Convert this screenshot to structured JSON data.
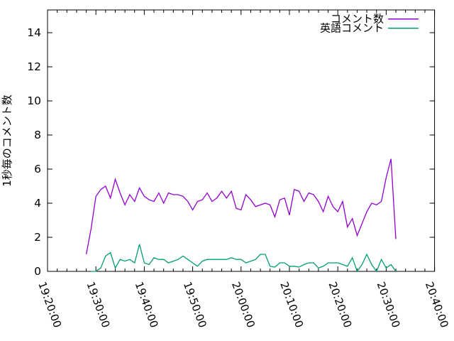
{
  "colors": {
    "background": "#ffffff",
    "axis": "#000000",
    "text": "#000000",
    "series_comments": "#9400d3",
    "series_english": "#009e73"
  },
  "chart_data": {
    "type": "line",
    "title": "",
    "xlabel": "",
    "ylabel": "1秒毎のコメント数",
    "ylim": [
      0,
      15.333
    ],
    "y_ticks": [
      0,
      2,
      4,
      6,
      8,
      10,
      12,
      14
    ],
    "x_tick_labels": [
      "19:20:00",
      "19:30:00",
      "19:40:00",
      "19:50:00",
      "20:00:00",
      "20:10:00",
      "20:20:00",
      "20:30:00",
      "20:40:00"
    ],
    "x_minor_interval_minutes": 2,
    "x_major_interval_minutes": 10,
    "grid": false,
    "legend_position": "top-right-inside",
    "series": [
      {
        "name": "コメント数",
        "color": "#9400d3",
        "times": [
          "19:28",
          "19:29",
          "19:30",
          "19:31",
          "19:32",
          "19:33",
          "19:34",
          "19:35",
          "19:36",
          "19:37",
          "19:38",
          "19:39",
          "19:40",
          "19:41",
          "19:42",
          "19:43",
          "19:44",
          "19:45",
          "19:46",
          "19:47",
          "19:48",
          "19:49",
          "19:50",
          "19:51",
          "19:52",
          "19:53",
          "19:54",
          "19:55",
          "19:56",
          "19:57",
          "19:58",
          "19:59",
          "20:00",
          "20:01",
          "20:02",
          "20:03",
          "20:04",
          "20:05",
          "20:06",
          "20:07",
          "20:08",
          "20:09",
          "20:10",
          "20:11",
          "20:12",
          "20:13",
          "20:14",
          "20:15",
          "20:16",
          "20:17",
          "20:18",
          "20:19",
          "20:20",
          "20:21",
          "20:22",
          "20:23",
          "20:24",
          "20:25",
          "20:26",
          "20:27",
          "20:28",
          "20:29",
          "20:30",
          "20:31",
          "20:32"
        ],
        "values": [
          1.0,
          2.5,
          4.4,
          4.8,
          5.0,
          4.3,
          5.4,
          4.6,
          3.9,
          4.5,
          4.1,
          4.9,
          4.4,
          4.2,
          4.1,
          4.6,
          4.0,
          4.6,
          4.5,
          4.5,
          4.4,
          4.1,
          3.6,
          4.1,
          4.2,
          4.6,
          4.1,
          4.3,
          4.7,
          4.3,
          4.7,
          3.7,
          3.6,
          4.5,
          4.2,
          3.8,
          3.9,
          4.0,
          3.9,
          3.2,
          4.2,
          4.3,
          3.3,
          4.8,
          4.7,
          4.1,
          4.6,
          4.5,
          4.1,
          3.5,
          4.4,
          3.8,
          3.5,
          4.1,
          2.6,
          3.1,
          2.1,
          2.8,
          3.5,
          4.0,
          3.9,
          4.1,
          5.5,
          6.6,
          1.9
        ]
      },
      {
        "name": "英語コメント",
        "color": "#009e73",
        "times": [
          "19:29",
          "19:30",
          "19:31",
          "19:32",
          "19:33",
          "19:34",
          "19:35",
          "19:36",
          "19:37",
          "19:38",
          "19:39",
          "19:40",
          "19:41",
          "19:42",
          "19:43",
          "19:44",
          "19:45",
          "19:46",
          "19:47",
          "19:48",
          "19:49",
          "19:50",
          "19:51",
          "19:52",
          "19:53",
          "19:54",
          "19:55",
          "19:56",
          "19:57",
          "19:58",
          "19:59",
          "20:00",
          "20:01",
          "20:02",
          "20:03",
          "20:04",
          "20:05",
          "20:06",
          "20:07",
          "20:08",
          "20:09",
          "20:10",
          "20:11",
          "20:12",
          "20:13",
          "20:14",
          "20:15",
          "20:16",
          "20:17",
          "20:18",
          "20:19",
          "20:20",
          "20:21",
          "20:22",
          "20:23",
          "20:24",
          "20:25",
          "20:26",
          "20:27",
          "20:28",
          "20:29",
          "20:30",
          "20:31",
          "20:32"
        ],
        "values": [
          0.0,
          0.0,
          0.2,
          0.9,
          1.1,
          0.2,
          0.7,
          0.6,
          0.7,
          0.5,
          1.6,
          0.5,
          0.4,
          0.8,
          0.7,
          0.7,
          0.5,
          0.6,
          0.7,
          0.9,
          0.7,
          0.5,
          0.3,
          0.6,
          0.7,
          0.7,
          0.7,
          0.7,
          0.7,
          0.8,
          0.7,
          0.7,
          0.5,
          0.6,
          0.7,
          1.0,
          1.0,
          0.3,
          0.25,
          0.5,
          0.5,
          0.3,
          0.3,
          0.25,
          0.4,
          0.5,
          0.5,
          0.2,
          0.3,
          0.5,
          0.5,
          0.5,
          0.4,
          0.3,
          0.8,
          0.0,
          0.4,
          1.0,
          0.4,
          0.0,
          0.7,
          0.2,
          0.4,
          0.0
        ]
      }
    ]
  }
}
